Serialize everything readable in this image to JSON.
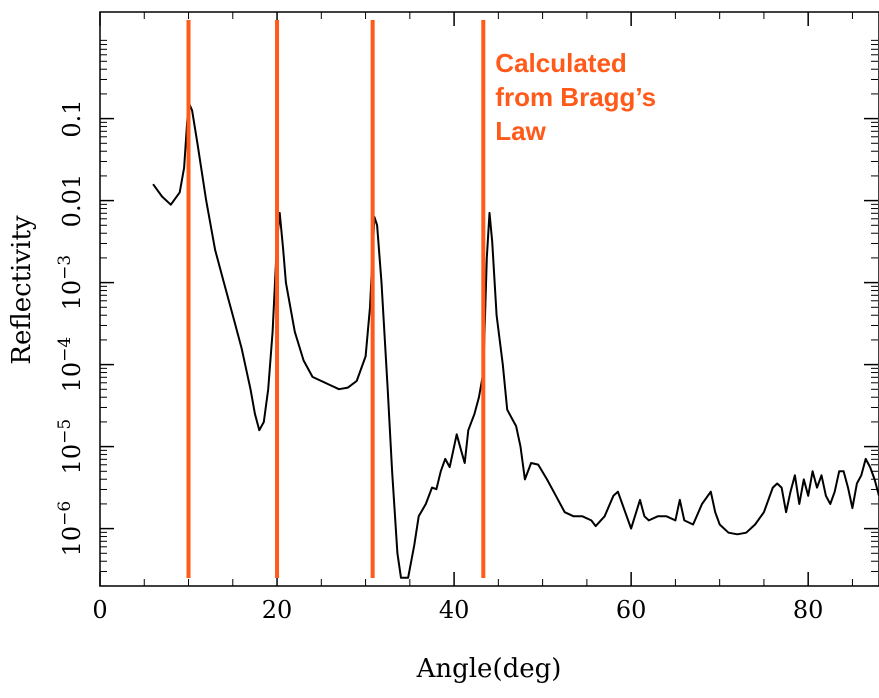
{
  "chart_data": {
    "type": "line",
    "title": "",
    "xlabel": "Angle(deg)",
    "ylabel": "Reflectivity",
    "xlim": [
      0,
      88
    ],
    "ylim_log10": [
      -6.7,
      0.3
    ],
    "yscale": "log",
    "grid": false,
    "x_ticks": [
      {
        "value": 0,
        "label": "0"
      },
      {
        "value": 20,
        "label": "20"
      },
      {
        "value": 40,
        "label": "40"
      },
      {
        "value": 60,
        "label": "60"
      },
      {
        "value": 80,
        "label": "80"
      }
    ],
    "y_ticks": [
      {
        "log10": -1,
        "base": "0.1",
        "exp": ""
      },
      {
        "log10": -2,
        "base": "0.01",
        "exp": ""
      },
      {
        "log10": -3,
        "base": "10",
        "exp": "−3"
      },
      {
        "log10": -4,
        "base": "10",
        "exp": "−4"
      },
      {
        "log10": -5,
        "base": "10",
        "exp": "−5"
      },
      {
        "log10": -6,
        "base": "10",
        "exp": "−6"
      }
    ],
    "series": [
      {
        "color": "#000000",
        "points": [
          [
            6.0,
            -1.8
          ],
          [
            7.0,
            -1.95
          ],
          [
            8.0,
            -2.05
          ],
          [
            9.0,
            -1.9
          ],
          [
            9.5,
            -1.6
          ],
          [
            10.0,
            -0.8
          ],
          [
            10.4,
            -0.9
          ],
          [
            11.0,
            -1.3
          ],
          [
            12.0,
            -2.0
          ],
          [
            13.0,
            -2.6
          ],
          [
            14.0,
            -3.0
          ],
          [
            15.0,
            -3.4
          ],
          [
            16.0,
            -3.8
          ],
          [
            17.0,
            -4.3
          ],
          [
            17.5,
            -4.6
          ],
          [
            18.0,
            -4.8
          ],
          [
            18.5,
            -4.7
          ],
          [
            19.0,
            -4.3
          ],
          [
            19.5,
            -3.6
          ],
          [
            20.0,
            -2.5
          ],
          [
            20.3,
            -2.15
          ],
          [
            20.7,
            -2.6
          ],
          [
            21.0,
            -3.0
          ],
          [
            22.0,
            -3.6
          ],
          [
            23.0,
            -3.95
          ],
          [
            24.0,
            -4.15
          ],
          [
            25.0,
            -4.2
          ],
          [
            26.0,
            -4.25
          ],
          [
            27.0,
            -4.3
          ],
          [
            28.0,
            -4.28
          ],
          [
            29.0,
            -4.2
          ],
          [
            30.0,
            -3.9
          ],
          [
            30.5,
            -3.3
          ],
          [
            31.0,
            -2.2
          ],
          [
            31.3,
            -2.3
          ],
          [
            31.8,
            -3.0
          ],
          [
            32.5,
            -4.3
          ],
          [
            33.0,
            -5.3
          ],
          [
            33.6,
            -6.3
          ],
          [
            34.0,
            -6.6
          ],
          [
            34.8,
            -6.6
          ],
          [
            35.5,
            -6.2
          ],
          [
            36.0,
            -5.85
          ],
          [
            36.8,
            -5.7
          ],
          [
            37.5,
            -5.5
          ],
          [
            38.0,
            -5.52
          ],
          [
            38.5,
            -5.3
          ],
          [
            39.0,
            -5.15
          ],
          [
            39.5,
            -5.25
          ],
          [
            40.0,
            -5.0
          ],
          [
            40.3,
            -4.85
          ],
          [
            40.8,
            -5.05
          ],
          [
            41.2,
            -5.2
          ],
          [
            41.6,
            -4.8
          ],
          [
            42.3,
            -4.6
          ],
          [
            42.8,
            -4.4
          ],
          [
            43.3,
            -4.1
          ],
          [
            43.7,
            -2.7
          ],
          [
            44.0,
            -2.15
          ],
          [
            44.3,
            -2.5
          ],
          [
            44.8,
            -3.4
          ],
          [
            45.5,
            -4.0
          ],
          [
            46.0,
            -4.55
          ],
          [
            46.5,
            -4.65
          ],
          [
            47.0,
            -4.75
          ],
          [
            47.5,
            -5.0
          ],
          [
            48.0,
            -5.4
          ],
          [
            48.7,
            -5.2
          ],
          [
            49.5,
            -5.22
          ],
          [
            50.5,
            -5.4
          ],
          [
            51.5,
            -5.6
          ],
          [
            52.5,
            -5.8
          ],
          [
            53.5,
            -5.85
          ],
          [
            54.5,
            -5.85
          ],
          [
            55.5,
            -5.9
          ],
          [
            56.0,
            -5.97
          ],
          [
            57.0,
            -5.85
          ],
          [
            58.0,
            -5.6
          ],
          [
            58.5,
            -5.55
          ],
          [
            59.0,
            -5.7
          ],
          [
            60.0,
            -6.0
          ],
          [
            61.0,
            -5.65
          ],
          [
            61.5,
            -5.85
          ],
          [
            62.0,
            -5.9
          ],
          [
            63.0,
            -5.85
          ],
          [
            64.0,
            -5.85
          ],
          [
            65.0,
            -5.9
          ],
          [
            65.5,
            -5.65
          ],
          [
            66.0,
            -5.9
          ],
          [
            67.0,
            -5.95
          ],
          [
            68.0,
            -5.7
          ],
          [
            69.0,
            -5.55
          ],
          [
            69.5,
            -5.8
          ],
          [
            70.0,
            -5.95
          ],
          [
            71.0,
            -6.05
          ],
          [
            72.0,
            -6.07
          ],
          [
            73.0,
            -6.05
          ],
          [
            74.0,
            -5.95
          ],
          [
            75.0,
            -5.8
          ],
          [
            76.0,
            -5.5
          ],
          [
            76.5,
            -5.45
          ],
          [
            77.0,
            -5.5
          ],
          [
            77.5,
            -5.8
          ],
          [
            78.0,
            -5.55
          ],
          [
            78.5,
            -5.35
          ],
          [
            79.0,
            -5.7
          ],
          [
            79.5,
            -5.4
          ],
          [
            80.0,
            -5.6
          ],
          [
            80.5,
            -5.3
          ],
          [
            81.0,
            -5.5
          ],
          [
            81.5,
            -5.35
          ],
          [
            82.0,
            -5.6
          ],
          [
            82.5,
            -5.7
          ],
          [
            83.0,
            -5.55
          ],
          [
            83.5,
            -5.3
          ],
          [
            84.0,
            -5.3
          ],
          [
            84.5,
            -5.5
          ],
          [
            85.0,
            -5.75
          ],
          [
            85.5,
            -5.45
          ],
          [
            86.0,
            -5.35
          ],
          [
            86.5,
            -5.15
          ],
          [
            87.0,
            -5.25
          ],
          [
            87.5,
            -5.4
          ],
          [
            88.0,
            -5.6
          ]
        ]
      }
    ],
    "bragg_lines": [
      {
        "x": 10.0
      },
      {
        "x": 20.0
      },
      {
        "x": 30.8
      },
      {
        "x": 43.3
      }
    ],
    "bragg_color": "#ff5a1a",
    "annotation": {
      "lines": [
        "Calculated",
        "from Bragg’s",
        "Law"
      ],
      "color": "#ff5a1a"
    }
  }
}
